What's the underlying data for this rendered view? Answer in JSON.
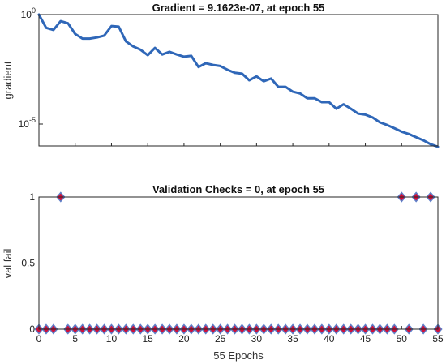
{
  "colors": {
    "line": "#2f67b8",
    "marker_fill": "#d0103a",
    "marker_edge": "#5f7fc8",
    "axis": "#262626"
  },
  "chart_data": [
    {
      "type": "line",
      "title": "Gradient = 9.1623e-07, at epoch 55",
      "ylabel": "gradient",
      "yscale": "log",
      "ylim": [
        1e-06,
        1
      ],
      "xlim": [
        0,
        55
      ],
      "ytick_labels": [
        {
          "base": "10",
          "exp": "0",
          "value": 1
        },
        {
          "base": "10",
          "exp": "-5",
          "value": 1e-05
        }
      ],
      "x": [
        0,
        1,
        2,
        3,
        4,
        5,
        6,
        7,
        8,
        9,
        10,
        11,
        12,
        13,
        14,
        15,
        16,
        17,
        18,
        19,
        20,
        21,
        22,
        23,
        24,
        25,
        26,
        27,
        28,
        29,
        30,
        31,
        32,
        33,
        34,
        35,
        36,
        37,
        38,
        39,
        40,
        41,
        42,
        43,
        44,
        45,
        46,
        47,
        48,
        49,
        50,
        51,
        52,
        53,
        54,
        55
      ],
      "values": [
        1.0,
        0.25,
        0.2,
        0.5,
        0.4,
        0.13,
        0.08,
        0.08,
        0.09,
        0.11,
        0.3,
        0.28,
        0.06,
        0.035,
        0.025,
        0.014,
        0.03,
        0.015,
        0.02,
        0.015,
        0.012,
        0.013,
        0.004,
        0.006,
        0.005,
        0.0045,
        0.003,
        0.0022,
        0.002,
        0.001,
        0.0015,
        0.0009,
        0.0012,
        0.0005,
        0.0005,
        0.0003,
        0.00025,
        0.00015,
        0.00015,
        0.0001,
        0.0001,
        5e-05,
        8e-05,
        5e-05,
        3e-05,
        2.7e-05,
        2e-05,
        1.2e-05,
        9e-06,
        6.5e-06,
        4.5e-06,
        3.5e-06,
        2.5e-06,
        1.8e-06,
        1.2e-06,
        9.2e-07
      ]
    },
    {
      "type": "scatter",
      "title": "Validation Checks = 0, at epoch 55",
      "ylabel": "val fail",
      "xlabel": "55 Epochs",
      "xlim": [
        0,
        55
      ],
      "ylim": [
        0,
        1
      ],
      "yticks": [
        "0",
        "0.5",
        "1"
      ],
      "xticks": [
        "0",
        "5",
        "10",
        "15",
        "20",
        "25",
        "30",
        "35",
        "40",
        "45",
        "50",
        "55"
      ],
      "x": [
        0,
        1,
        2,
        3,
        4,
        5,
        6,
        7,
        8,
        9,
        10,
        11,
        12,
        13,
        14,
        15,
        16,
        17,
        18,
        19,
        20,
        21,
        22,
        23,
        24,
        25,
        26,
        27,
        28,
        29,
        30,
        31,
        32,
        33,
        34,
        35,
        36,
        37,
        38,
        39,
        40,
        41,
        42,
        43,
        44,
        45,
        46,
        47,
        48,
        49,
        50,
        51,
        52,
        53,
        54,
        55
      ],
      "values": [
        0,
        0,
        0,
        1,
        0,
        0,
        0,
        0,
        0,
        0,
        0,
        0,
        0,
        0,
        0,
        0,
        0,
        0,
        0,
        0,
        0,
        0,
        0,
        0,
        0,
        0,
        0,
        0,
        0,
        0,
        0,
        0,
        0,
        0,
        0,
        0,
        0,
        0,
        0,
        0,
        0,
        0,
        0,
        0,
        0,
        0,
        0,
        0,
        0,
        0,
        1,
        0,
        1,
        0,
        1,
        0
      ]
    }
  ]
}
